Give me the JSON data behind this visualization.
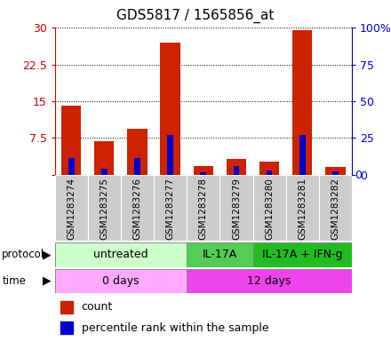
{
  "title": "GDS5817 / 1565856_at",
  "samples": [
    "GSM1283274",
    "GSM1283275",
    "GSM1283276",
    "GSM1283277",
    "GSM1283278",
    "GSM1283279",
    "GSM1283280",
    "GSM1283281",
    "GSM1283282"
  ],
  "count_values": [
    14.1,
    6.9,
    9.4,
    27.0,
    1.7,
    3.2,
    2.7,
    29.6,
    1.5
  ],
  "percentile_values": [
    11.0,
    4.0,
    11.0,
    27.0,
    1.5,
    6.0,
    3.0,
    27.0,
    2.0
  ],
  "left_yticks": [
    0,
    7.5,
    15,
    22.5,
    30
  ],
  "right_yticks": [
    0,
    25,
    50,
    75,
    100
  ],
  "left_ylim": [
    0,
    30
  ],
  "right_ylim": [
    0,
    100
  ],
  "bar_color_red": "#cc2200",
  "bar_color_blue": "#0000cc",
  "protocol_groups": [
    {
      "label": "untreated",
      "start": 0,
      "end": 4,
      "color": "#ccffcc"
    },
    {
      "label": "IL-17A",
      "start": 4,
      "end": 6,
      "color": "#55cc55"
    },
    {
      "label": "IL-17A + IFN-g",
      "start": 6,
      "end": 9,
      "color": "#22bb22"
    }
  ],
  "time_groups": [
    {
      "label": "0 days",
      "start": 0,
      "end": 4,
      "color": "#ffaaff"
    },
    {
      "label": "12 days",
      "start": 4,
      "end": 9,
      "color": "#ee44ee"
    }
  ],
  "bg_color": "#ffffff",
  "tick_area_color": "#cccccc",
  "grid_color": "#000000",
  "left_tick_color": "#cc0000",
  "right_tick_color": "#0000cc",
  "bar_width": 0.6,
  "blue_bar_width": 0.18
}
